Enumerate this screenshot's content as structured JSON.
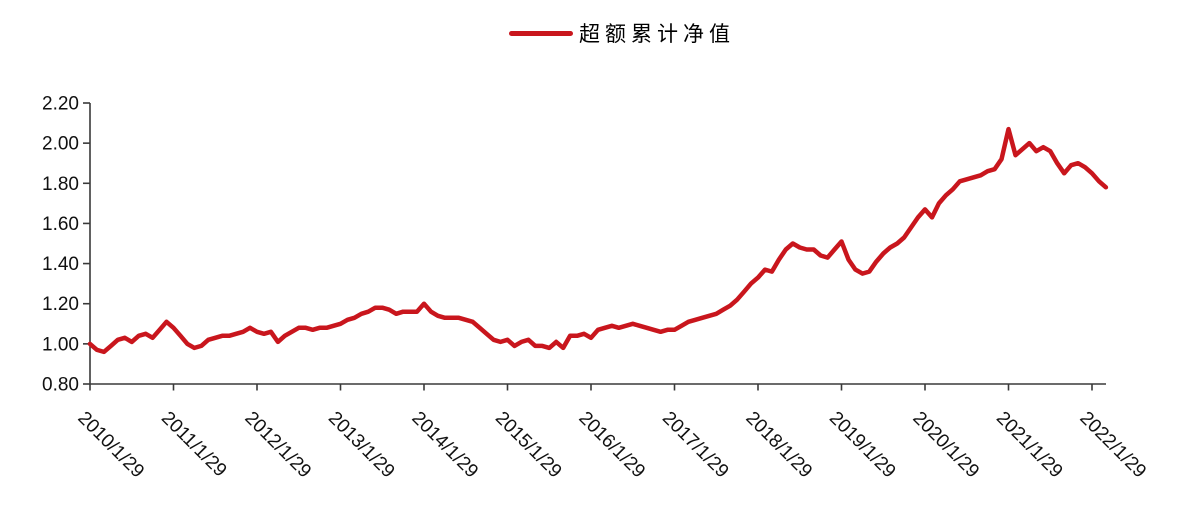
{
  "colors": {
    "line": "#C9161D",
    "axis": "#3A3A3A",
    "label_text": "#111111",
    "background": "#FFFFFF"
  },
  "chart_data": {
    "type": "line",
    "title": "",
    "legend_entries": [
      "超额累计净值"
    ],
    "legend_position": "top-center",
    "grid": false,
    "x_unit": "monthly samples, one tick per year",
    "x_tick_labels": [
      "2010/1/29",
      "2011/1/29",
      "2012/1/29",
      "2013/1/29",
      "2014/1/29",
      "2015/1/29",
      "2016/1/29",
      "2017/1/29",
      "2018/1/29",
      "2019/1/29",
      "2020/1/29",
      "2021/1/29",
      "2022/1/29"
    ],
    "x_ticks_every_n_points": 12,
    "x_label_rotation_deg": 45,
    "y_tick_labels": [
      "0.80",
      "1.00",
      "1.20",
      "1.40",
      "1.60",
      "1.80",
      "2.00",
      "2.20"
    ],
    "ylim": [
      0.8,
      2.2
    ],
    "series": [
      {
        "name": "超额累计净值",
        "color": "#C9161D",
        "values": [
          1.0,
          0.97,
          0.96,
          0.99,
          1.02,
          1.03,
          1.01,
          1.04,
          1.05,
          1.03,
          1.07,
          1.11,
          1.08,
          1.04,
          1.0,
          0.98,
          0.99,
          1.02,
          1.03,
          1.04,
          1.04,
          1.05,
          1.06,
          1.08,
          1.06,
          1.05,
          1.06,
          1.01,
          1.04,
          1.06,
          1.08,
          1.08,
          1.07,
          1.08,
          1.08,
          1.09,
          1.1,
          1.12,
          1.13,
          1.15,
          1.16,
          1.18,
          1.18,
          1.17,
          1.15,
          1.16,
          1.16,
          1.16,
          1.2,
          1.16,
          1.14,
          1.13,
          1.13,
          1.13,
          1.12,
          1.11,
          1.08,
          1.05,
          1.02,
          1.01,
          1.02,
          0.99,
          1.01,
          1.02,
          0.99,
          0.99,
          0.98,
          1.01,
          0.98,
          1.04,
          1.04,
          1.05,
          1.03,
          1.07,
          1.08,
          1.09,
          1.08,
          1.09,
          1.1,
          1.09,
          1.08,
          1.07,
          1.06,
          1.07,
          1.07,
          1.09,
          1.11,
          1.12,
          1.13,
          1.14,
          1.15,
          1.17,
          1.19,
          1.22,
          1.26,
          1.3,
          1.33,
          1.37,
          1.36,
          1.42,
          1.47,
          1.5,
          1.48,
          1.47,
          1.47,
          1.44,
          1.43,
          1.47,
          1.51,
          1.42,
          1.37,
          1.35,
          1.36,
          1.41,
          1.45,
          1.48,
          1.5,
          1.53,
          1.58,
          1.63,
          1.67,
          1.63,
          1.7,
          1.74,
          1.77,
          1.81,
          1.82,
          1.83,
          1.84,
          1.86,
          1.87,
          1.92,
          2.07,
          1.94,
          1.97,
          2.0,
          1.96,
          1.98,
          1.96,
          1.9,
          1.85,
          1.89,
          1.9,
          1.88,
          1.85,
          1.81,
          1.78
        ]
      }
    ]
  }
}
